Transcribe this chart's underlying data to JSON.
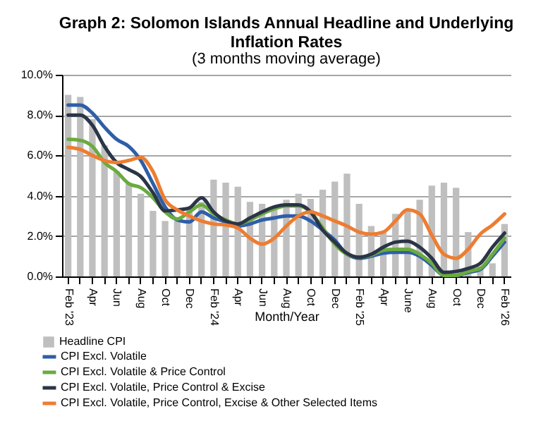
{
  "chart_data": {
    "type": "bar",
    "title": "Graph 2:  Solomon Islands Annual Headline and Underlying Inflation Rates",
    "subtitle": "(3 months moving average)",
    "xlabel": "Month/Year",
    "categories": [
      "Feb '23",
      null,
      "Apr",
      null,
      "Jun",
      null,
      "Aug",
      null,
      "Oct",
      null,
      "Dec",
      null,
      "Feb '24",
      null,
      "Apr",
      null,
      "Jun",
      null,
      "Aug",
      null,
      "Oct",
      null,
      "Dec",
      null,
      "Feb '25",
      null,
      "Apr",
      null,
      "June",
      null,
      "Aug",
      null,
      "Oct",
      null,
      "Dec",
      null,
      "Feb '26"
    ],
    "series": [
      {
        "name": "Headline CPI",
        "color": "#bfbfbf",
        "values": [
          9.0,
          8.9,
          7.8,
          6.5,
          5.2,
          4.6,
          4.1,
          3.25,
          2.75,
          2.75,
          3.3,
          3.7,
          4.8,
          4.65,
          4.45,
          3.7,
          3.6,
          3.45,
          3.8,
          4.1,
          3.85,
          4.3,
          4.7,
          5.1,
          3.6,
          2.5,
          2.2,
          3.1,
          3.3,
          3.8,
          4.5,
          4.65,
          4.4,
          2.2,
          0.5,
          0.65,
          2.6
        ]
      },
      {
        "name": "CPI Excl. Volatile",
        "type": "line",
        "color": "#2e5ea8",
        "values": [
          8.5,
          8.5,
          8.1,
          7.4,
          6.8,
          6.45,
          5.75,
          4.6,
          3.45,
          2.8,
          2.7,
          3.2,
          2.9,
          2.7,
          2.5,
          2.6,
          2.8,
          2.9,
          3.0,
          3.0,
          2.75,
          2.3,
          1.8,
          1.1,
          0.9,
          1.0,
          1.15,
          1.2,
          1.2,
          1.0,
          0.55,
          0.05,
          0.05,
          0.2,
          0.35,
          1.0,
          1.7
        ]
      },
      {
        "name": "CPI Excl. Volatile & Price Control",
        "type": "line",
        "color": "#6aab3f",
        "values": [
          6.8,
          6.75,
          6.45,
          5.65,
          5.2,
          4.6,
          4.4,
          3.9,
          3.2,
          2.85,
          3.2,
          3.55,
          3.1,
          2.8,
          2.6,
          2.8,
          3.1,
          3.35,
          3.5,
          3.5,
          3.2,
          2.4,
          1.6,
          1.1,
          0.95,
          1.05,
          1.3,
          1.35,
          1.35,
          1.1,
          0.65,
          0.05,
          0.05,
          0.25,
          0.4,
          1.1,
          1.9
        ]
      },
      {
        "name": "CPI Excl. Volatile, Price Control & Excise",
        "type": "line",
        "color": "#2b3548",
        "values": [
          8.0,
          8.0,
          7.5,
          6.45,
          5.65,
          5.3,
          4.95,
          4.15,
          3.25,
          3.3,
          3.4,
          3.9,
          3.2,
          2.75,
          2.6,
          2.9,
          3.2,
          3.45,
          3.55,
          3.55,
          3.2,
          2.3,
          1.7,
          1.15,
          0.95,
          1.1,
          1.45,
          1.7,
          1.75,
          1.45,
          0.9,
          0.2,
          0.25,
          0.4,
          0.65,
          1.45,
          2.15
        ]
      },
      {
        "name": "CPI Excl. Volatile, Price Control, Excise & Other Selected Items",
        "type": "line",
        "color": "#ed7d31",
        "values": [
          6.4,
          6.3,
          6.0,
          5.75,
          5.65,
          5.75,
          5.9,
          5.2,
          3.8,
          3.3,
          3.0,
          2.75,
          2.6,
          2.55,
          2.4,
          1.9,
          1.6,
          1.9,
          2.5,
          3.0,
          3.2,
          3.0,
          2.75,
          2.5,
          2.2,
          2.1,
          2.2,
          2.75,
          3.3,
          3.1,
          2.05,
          1.1,
          0.9,
          1.35,
          2.1,
          2.55,
          3.1
        ]
      }
    ],
    "ylim": [
      0,
      10
    ],
    "yticks": [
      {
        "value": 0,
        "label": "0.0%"
      },
      {
        "value": 2,
        "label": "2.0%"
      },
      {
        "value": 4,
        "label": "4.0%"
      },
      {
        "value": 6,
        "label": "6.0%"
      },
      {
        "value": 8,
        "label": "8.0%"
      },
      {
        "value": 10,
        "label": "10.0%"
      }
    ],
    "grid": "y",
    "legend": "bottom",
    "line_style": "solid",
    "marker": "none"
  }
}
